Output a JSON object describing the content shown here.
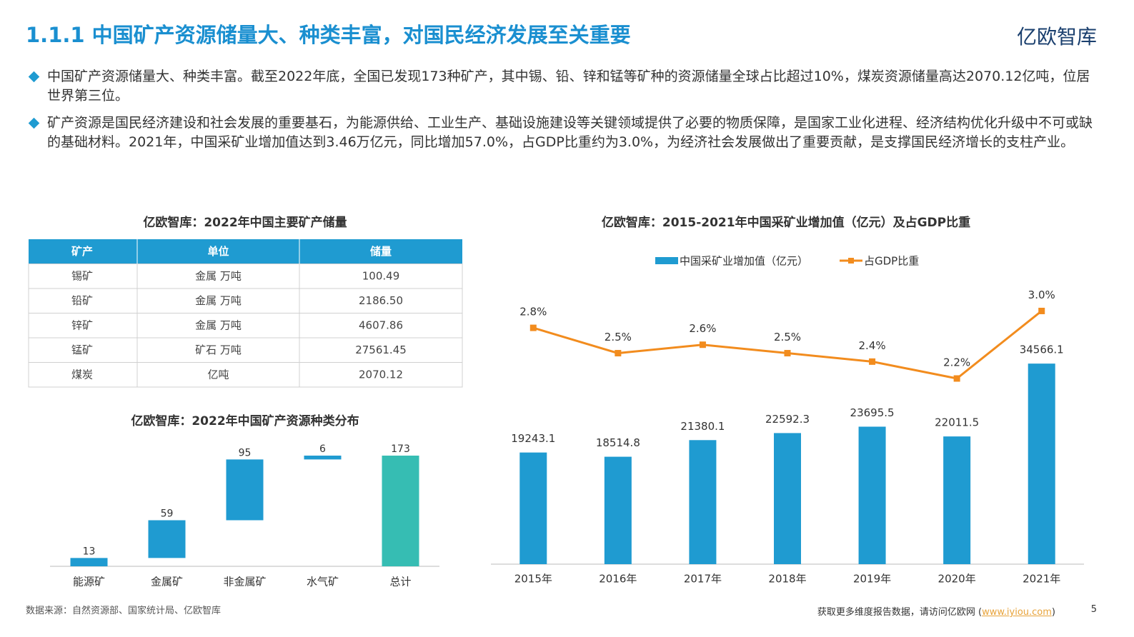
{
  "header": {
    "title": "1.1.1 中国矿产资源储量大、种类丰富，对国民经济发展至关重要",
    "logo": "亿欧智库"
  },
  "bullets": [
    "中国矿产资源储量大、种类丰富。截至2022年底，全国已发现173种矿产，其中锡、铅、锌和锰等矿种的资源储量全球占比超过10%，煤炭资源储量高达2070.12亿吨，位居世界第三位。",
    "矿产资源是国民经济建设和社会发展的重要基石，为能源供给、工业生产、基础设施建设等关键领域提供了必要的物质保障，是国家工业化进程、经济结构优化升级中不可或缺的基础材料。2021年，中国采矿业增加值达到3.46万亿元，同比增加57.0%，占GDP比重约为3.0%，为经济社会发展做出了重要贡献，是支撑国民经济增长的支柱产业。"
  ],
  "table": {
    "title": "亿欧智库：2022年中国主要矿产储量",
    "header": [
      "矿产",
      "单位",
      "储量"
    ],
    "rows": [
      [
        "锡矿",
        "金属 万吨",
        "100.49"
      ],
      [
        "铅矿",
        "金属 万吨",
        "2186.50"
      ],
      [
        "锌矿",
        "金属 万吨",
        "4607.86"
      ],
      [
        "锰矿",
        "矿石 万吨",
        "27561.45"
      ],
      [
        "煤炭",
        "亿吨",
        "2070.12"
      ]
    ]
  },
  "chart_data": [
    {
      "type": "waterfall",
      "title": "亿欧智库：2022年中国矿产资源种类分布",
      "categories": [
        "能源矿",
        "金属矿",
        "非金属矿",
        "水气矿",
        "总计"
      ],
      "values": [
        13,
        59,
        95,
        6,
        173
      ],
      "color": "#1f9bd1",
      "total_color": "#36bdb3"
    },
    {
      "type": "bar-line",
      "title": "亿欧智库：2015-2021年中国采矿业增加值（亿元）及占GDP比重",
      "categories": [
        "2015年",
        "2016年",
        "2017年",
        "2018年",
        "2019年",
        "2020年",
        "2021年"
      ],
      "series": [
        {
          "name": "中国采矿业增加值（亿元）",
          "color": "#1f9bd1",
          "values": [
            19243.1,
            18514.8,
            21380.1,
            22592.3,
            23695.5,
            22011.5,
            34566.1
          ]
        },
        {
          "name": "占GDP比重",
          "color": "#f28c1e",
          "axis": "y2",
          "values": [
            2.8,
            2.5,
            2.6,
            2.5,
            2.4,
            2.2,
            3.0
          ],
          "value_labels": [
            "2.8%",
            "2.5%",
            "2.6%",
            "2.5%",
            "2.4%",
            "2.2%",
            "3.0%"
          ]
        }
      ],
      "ylim": [
        0,
        48000
      ],
      "y2lim": [
        0,
        3.3
      ],
      "legend": "top"
    }
  ],
  "footer": {
    "source": "数据来源：自然资源部、国家统计局、亿欧智库",
    "note": "获取更多维度报告数据，请访问亿欧网 (",
    "link": "www.iyiou.com",
    "close": ")",
    "page": "5"
  }
}
